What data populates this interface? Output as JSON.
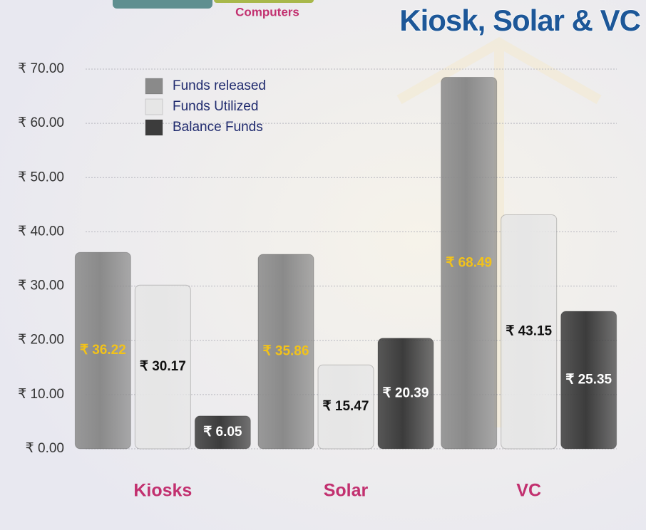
{
  "fragment": {
    "label": "Computers"
  },
  "chart_data": {
    "type": "bar",
    "title": "Kiosk, Solar & VC",
    "categories": [
      "Kiosks",
      "Solar",
      "VC"
    ],
    "series": [
      {
        "name": "Funds released",
        "color": "#8a8a8a",
        "label_color": "#f2c21a",
        "values": [
          36.22,
          35.86,
          68.49
        ],
        "value_labels": [
          "₹ 36.22",
          "₹ 35.86",
          "₹ 68.49"
        ]
      },
      {
        "name": "Funds Utilized",
        "color": "#e6e6e6",
        "label_color": "#111111",
        "values": [
          30.17,
          15.47,
          43.15
        ],
        "value_labels": [
          "₹ 30.17",
          "₹ 15.47",
          "₹ 43.15"
        ]
      },
      {
        "name": "Balance Funds",
        "color": "#3c3c3c",
        "label_color": "#ffffff",
        "values": [
          6.05,
          20.39,
          25.35
        ],
        "value_labels": [
          "₹ 6.05",
          "₹ 20.39",
          "₹ 25.35"
        ]
      }
    ],
    "ylim": [
      0,
      70
    ],
    "yticks": [
      {
        "value": 0,
        "label": "₹ 0.00"
      },
      {
        "value": 10,
        "label": "₹ 10.00"
      },
      {
        "value": 20,
        "label": "₹ 20.00"
      },
      {
        "value": 30,
        "label": "₹ 30.00"
      },
      {
        "value": 40,
        "label": "₹ 40.00"
      },
      {
        "value": 50,
        "label": "₹ 50.00"
      },
      {
        "value": 60,
        "label": "₹ 60.00"
      },
      {
        "value": 70,
        "label": "₹ 70.00"
      }
    ],
    "grid": true,
    "legend": "top-left"
  }
}
